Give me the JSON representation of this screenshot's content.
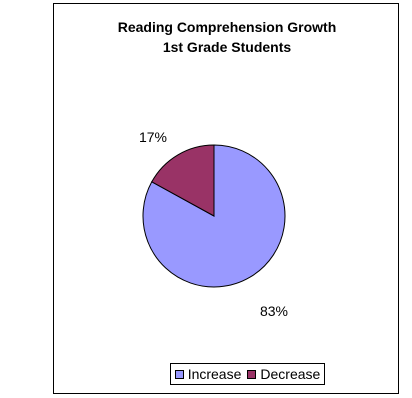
{
  "chart_data": {
    "type": "pie",
    "title": "Reading Comprehension Growth",
    "subtitle": "1st Grade Students",
    "categories": [
      "Increase",
      "Decrease"
    ],
    "values": [
      83,
      17
    ],
    "data_labels": [
      "83%",
      "17%"
    ],
    "colors": [
      "#9999ff",
      "#993366"
    ],
    "legend_position": "bottom"
  }
}
